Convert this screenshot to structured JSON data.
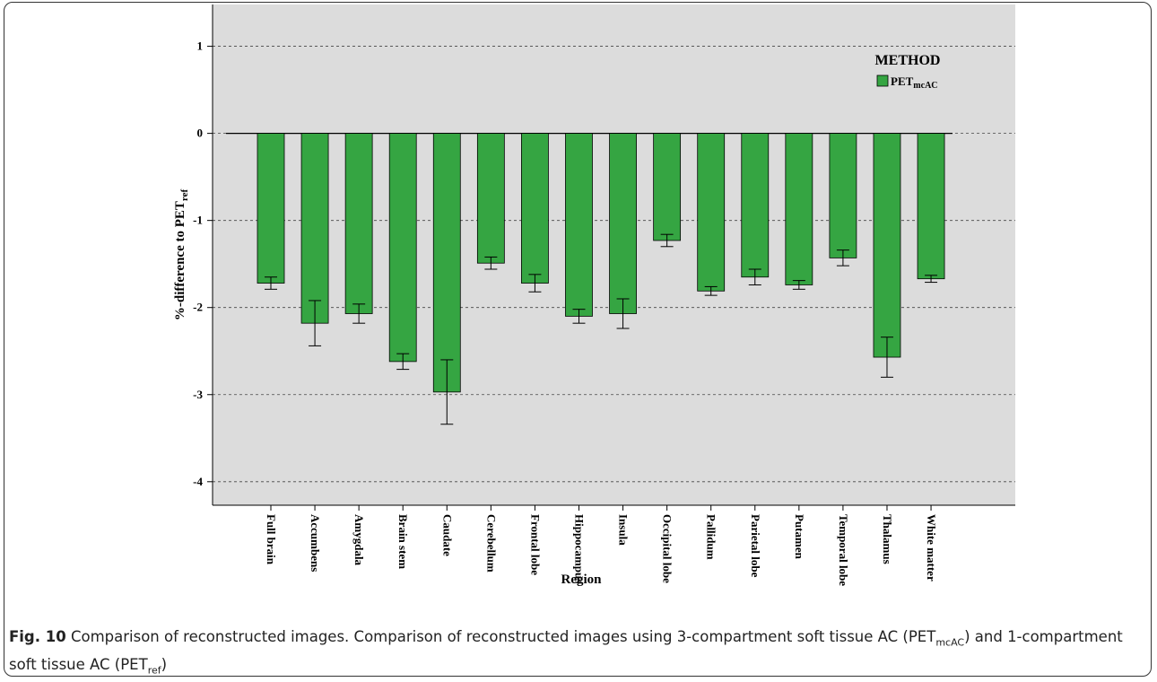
{
  "chart_data": {
    "type": "bar",
    "ylabel": "%-difference to PET",
    "ylabel_sub": "ref",
    "xlabel": "Region",
    "legend_title": "METHOD",
    "categories": [
      "Full brain",
      "Accumbens",
      "Amygdala",
      "Brain stem",
      "Caudate",
      "Cerebellum",
      "Frontal lobe",
      "Hippocampus",
      "Insula",
      "Occipital lobe",
      "Pallidum",
      "Parietal lobe",
      "Putamen",
      "Temporal lobe",
      "Thalamus",
      "White matter"
    ],
    "series": [
      {
        "name": "PET",
        "name_sub": "mcAC",
        "color": "#35a542",
        "values": [
          -1.72,
          -2.18,
          -2.07,
          -2.62,
          -2.97,
          -1.49,
          -1.72,
          -2.1,
          -2.07,
          -1.23,
          -1.81,
          -1.65,
          -1.74,
          -1.43,
          -2.57,
          -1.67
        ],
        "errors": [
          0.07,
          0.26,
          0.11,
          0.09,
          0.37,
          0.07,
          0.1,
          0.08,
          0.17,
          0.07,
          0.05,
          0.09,
          0.05,
          0.09,
          0.23,
          0.04
        ]
      }
    ],
    "ylim": [
      -4.27,
      1.48
    ],
    "yticks": [
      -4,
      -3,
      -2,
      -1,
      0,
      1
    ],
    "grid": true
  },
  "caption": {
    "label": "Fig. 10",
    "parts": [
      {
        "text": "Comparison of reconstructed images. Comparison of reconstructed images using 3-compartment soft tissue AC (PET"
      },
      {
        "sub": "mcAC"
      },
      {
        "text": ") and 1-compartment soft tissue AC (PET"
      },
      {
        "sub": "ref"
      },
      {
        "text": ")"
      }
    ]
  }
}
